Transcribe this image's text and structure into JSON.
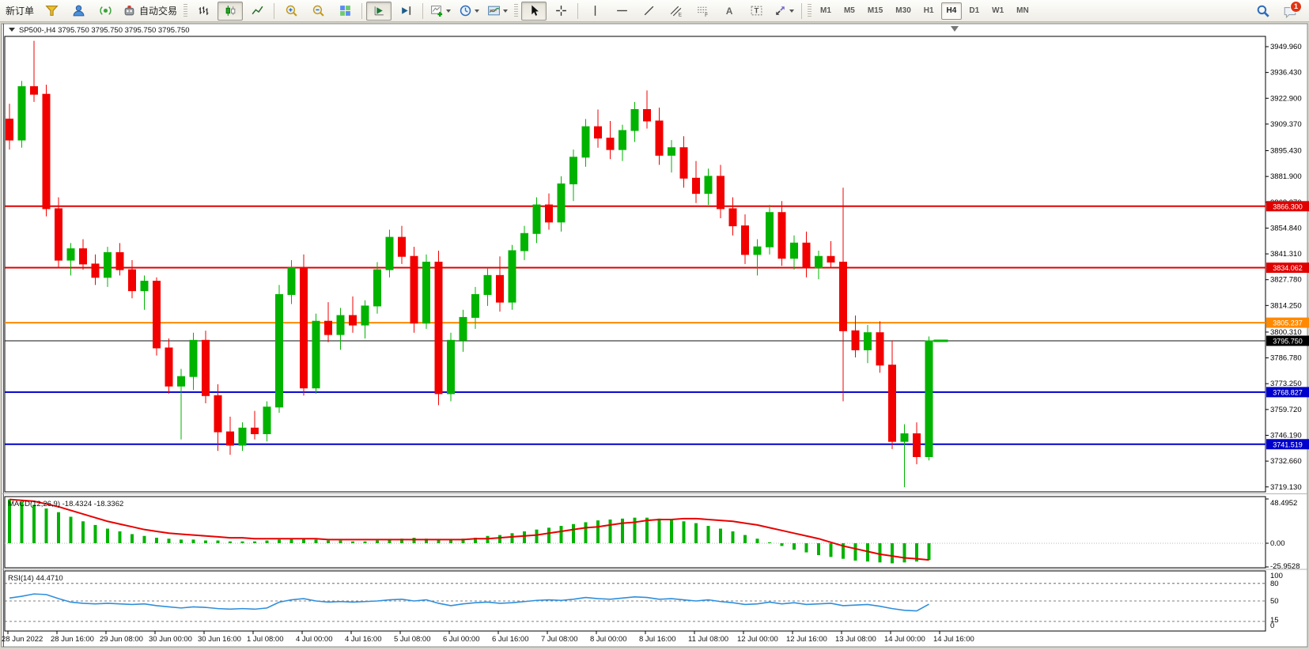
{
  "toolbar": {
    "new_order_label": "新订单",
    "auto_trading_label": "自动交易",
    "text_tool_label": "A",
    "label_tool_label": "T",
    "channel_tool_sub": "E",
    "fibo_tool_sub": "F",
    "timeframes": [
      "M1",
      "M5",
      "M15",
      "M30",
      "H1",
      "H4",
      "D1",
      "W1",
      "MN"
    ],
    "active_timeframe": "H4",
    "notification_count": "1",
    "icons": [
      "funnel-icon",
      "mql5-user-icon",
      "signals-icon",
      "autotrading-icon",
      "bars-chart-icon",
      "candles-chart-icon",
      "line-chart-icon",
      "zoom-in-icon",
      "zoom-out-icon",
      "tile-windows-icon",
      "auto-scroll-icon",
      "chart-shift-icon",
      "indicators-icon",
      "periods-icon",
      "templates-icon",
      "cursor-icon",
      "crosshair-icon",
      "vertical-line-icon",
      "horizontal-line-icon",
      "trendline-icon",
      "channel-icon",
      "fibonacci-icon",
      "text-icon",
      "label-icon",
      "arrows-icon",
      "search-icon",
      "chat-icon"
    ]
  },
  "chart_data": {
    "type": "candlestick",
    "title": "SP500-,H4  3795.750 3795.750 3795.750 3795.750",
    "symbol": "SP500-",
    "timeframe": "H4",
    "colors": {
      "up": "#00b300",
      "down": "#f20000",
      "bid_line": "#111111",
      "level_red": "#e00000",
      "level_orange": "#ff8a00",
      "level_blue": "#0000cc",
      "macd_signal": "#e80000",
      "macd_hist": "#00b300",
      "rsi_line": "#2f8fdd"
    },
    "price_axis": {
      "labels": [
        "3949.960",
        "3936.430",
        "3922.900",
        "3909.370",
        "3895.430",
        "3881.900",
        "3868.370",
        "3854.840",
        "3841.310",
        "3827.780",
        "3814.250",
        "3800.310",
        "3786.780",
        "3773.250",
        "3759.720",
        "3746.190",
        "3732.660",
        "3719.130"
      ],
      "values": [
        3949.96,
        3936.43,
        3922.9,
        3909.37,
        3895.43,
        3881.9,
        3868.37,
        3854.84,
        3841.31,
        3827.78,
        3814.25,
        3800.31,
        3786.78,
        3773.25,
        3759.72,
        3746.19,
        3732.66,
        3719.13
      ]
    },
    "hlines": [
      {
        "value": 3866.3,
        "label": "3866.300",
        "color": "#e00000",
        "width": 2
      },
      {
        "value": 3834.062,
        "label": "3834.062",
        "color": "#e00000",
        "width": 2
      },
      {
        "value": 3805.237,
        "label": "3805.237",
        "color": "#ff8a00",
        "width": 2
      },
      {
        "value": 3768.827,
        "label": "3768.827",
        "color": "#0000cc",
        "width": 2
      },
      {
        "value": 3741.519,
        "label": "3741.519",
        "color": "#0000cc",
        "width": 2
      }
    ],
    "bid": {
      "value": 3795.75,
      "label": "3795.750"
    },
    "ohlc": [
      [
        3912,
        3920,
        3896,
        3901
      ],
      [
        3901,
        3932,
        3897,
        3929
      ],
      [
        3929,
        3953,
        3921,
        3925
      ],
      [
        3925,
        3930,
        3861,
        3865
      ],
      [
        3865,
        3871,
        3834,
        3838
      ],
      [
        3838,
        3847,
        3830,
        3844
      ],
      [
        3844,
        3849,
        3833,
        3836
      ],
      [
        3836,
        3841,
        3825,
        3829
      ],
      [
        3829,
        3845,
        3824,
        3842
      ],
      [
        3842,
        3847,
        3830,
        3833
      ],
      [
        3833,
        3838,
        3818,
        3822
      ],
      [
        3822,
        3830,
        3812,
        3827
      ],
      [
        3827,
        3829,
        3788,
        3792
      ],
      [
        3792,
        3797,
        3768,
        3772
      ],
      [
        3772,
        3781,
        3744,
        3777
      ],
      [
        3777,
        3800,
        3770,
        3796
      ],
      [
        3796,
        3801,
        3763,
        3767
      ],
      [
        3767,
        3773,
        3738,
        3748
      ],
      [
        3748,
        3756,
        3736,
        3741
      ],
      [
        3741,
        3753,
        3738,
        3750
      ],
      [
        3750,
        3759,
        3744,
        3747
      ],
      [
        3747,
        3764,
        3743,
        3761
      ],
      [
        3761,
        3825,
        3758,
        3820
      ],
      [
        3820,
        3838,
        3815,
        3834
      ],
      [
        3834,
        3841,
        3767,
        3771
      ],
      [
        3771,
        3810,
        3768,
        3806
      ],
      [
        3806,
        3816,
        3795,
        3799
      ],
      [
        3799,
        3813,
        3791,
        3809
      ],
      [
        3809,
        3819,
        3800,
        3804
      ],
      [
        3804,
        3817,
        3797,
        3814
      ],
      [
        3814,
        3837,
        3810,
        3833
      ],
      [
        3833,
        3854,
        3829,
        3850
      ],
      [
        3850,
        3856,
        3836,
        3840
      ],
      [
        3840,
        3845,
        3800,
        3805
      ],
      [
        3805,
        3841,
        3802,
        3837
      ],
      [
        3837,
        3843,
        3762,
        3768
      ],
      [
        3768,
        3800,
        3764,
        3796
      ],
      [
        3796,
        3812,
        3790,
        3808
      ],
      [
        3808,
        3824,
        3802,
        3820
      ],
      [
        3820,
        3834,
        3814,
        3830
      ],
      [
        3830,
        3840,
        3811,
        3816
      ],
      [
        3816,
        3846,
        3812,
        3843
      ],
      [
        3843,
        3856,
        3838,
        3852
      ],
      [
        3852,
        3871,
        3847,
        3867
      ],
      [
        3867,
        3873,
        3854,
        3858
      ],
      [
        3858,
        3882,
        3853,
        3878
      ],
      [
        3878,
        3896,
        3869,
        3892
      ],
      [
        3892,
        3912,
        3887,
        3908
      ],
      [
        3908,
        3917,
        3897,
        3902
      ],
      [
        3902,
        3911,
        3891,
        3896
      ],
      [
        3896,
        3909,
        3890,
        3906
      ],
      [
        3906,
        3921,
        3900,
        3917
      ],
      [
        3917,
        3927,
        3907,
        3911
      ],
      [
        3911,
        3918,
        3888,
        3893
      ],
      [
        3893,
        3901,
        3884,
        3897
      ],
      [
        3897,
        3903,
        3876,
        3881
      ],
      [
        3881,
        3890,
        3868,
        3873
      ],
      [
        3873,
        3886,
        3867,
        3882
      ],
      [
        3882,
        3888,
        3860,
        3865
      ],
      [
        3865,
        3871,
        3851,
        3856
      ],
      [
        3856,
        3862,
        3836,
        3841
      ],
      [
        3841,
        3849,
        3830,
        3845
      ],
      [
        3845,
        3867,
        3841,
        3863
      ],
      [
        3863,
        3869,
        3835,
        3839
      ],
      [
        3839,
        3851,
        3833,
        3847
      ],
      [
        3847,
        3853,
        3829,
        3834
      ],
      [
        3834,
        3843,
        3828,
        3840
      ],
      [
        3840,
        3848,
        3834,
        3837
      ],
      [
        3837,
        3876,
        3764,
        3801
      ],
      [
        3801,
        3809,
        3787,
        3791
      ],
      [
        3791,
        3804,
        3784,
        3800
      ],
      [
        3800,
        3806,
        3779,
        3783
      ],
      [
        3783,
        3796,
        3739,
        3743
      ],
      [
        3743,
        3752,
        3719,
        3747
      ],
      [
        3747,
        3753,
        3731,
        3735
      ],
      [
        3735,
        3798,
        3733,
        3795.75
      ]
    ],
    "time_labels": [
      "28 Jun 2022",
      "28 Jun 16:00",
      "29 Jun 08:00",
      "30 Jun 00:00",
      "30 Jun 16:00",
      "1 Jul 08:00",
      "4 Jul 00:00",
      "4 Jul 16:00",
      "5 Jul 08:00",
      "6 Jul 00:00",
      "6 Jul 16:00",
      "7 Jul 08:00",
      "8 Jul 00:00",
      "8 Jul 16:00",
      "11 Jul 08:00",
      "12 Jul 00:00",
      "12 Jul 16:00",
      "13 Jul 08:00",
      "14 Jul 00:00",
      "14 Jul 16:00"
    ],
    "macd": {
      "label": "MACD(12,26,9) -18.4324 -18.3362",
      "macd_value": "-18.4324",
      "signal_value": "-18.3362",
      "axis_labels": [
        "48.4952",
        "0.00",
        "-25.9528"
      ],
      "axis_values": [
        48.4952,
        0,
        -25.9528
      ],
      "histogram": [
        48,
        45,
        42,
        38,
        34,
        29,
        24,
        20,
        16,
        13,
        10,
        8,
        6,
        5,
        4,
        4,
        3,
        3,
        2,
        2,
        2,
        3,
        4,
        5,
        5,
        4,
        3,
        3,
        2,
        2,
        3,
        4,
        5,
        6,
        5,
        4,
        4,
        5,
        6,
        8,
        9,
        11,
        13,
        15,
        17,
        19,
        21,
        23,
        25,
        26,
        27,
        28,
        28,
        27,
        26,
        24,
        22,
        19,
        16,
        13,
        9,
        5,
        1,
        -3,
        -7,
        -10,
        -13,
        -15,
        -17,
        -19,
        -20,
        -21,
        -22,
        -21,
        -20,
        -18.4
      ],
      "signal": [
        48,
        47,
        46,
        43,
        40,
        36,
        32,
        28,
        24,
        21,
        18,
        15,
        13,
        11,
        10,
        9,
        8,
        7,
        6,
        6,
        5,
        5,
        5,
        5,
        5,
        5,
        4,
        4,
        4,
        4,
        4,
        4,
        4,
        4,
        4,
        4,
        4,
        4,
        5,
        5,
        6,
        7,
        8,
        9,
        11,
        13,
        15,
        17,
        18,
        20,
        22,
        23,
        25,
        26,
        26,
        27,
        27,
        26,
        25,
        24,
        22,
        20,
        17,
        14,
        11,
        8,
        5,
        1,
        -3,
        -6,
        -9,
        -12,
        -14,
        -16,
        -17,
        -18.3
      ]
    },
    "rsi": {
      "label": "RSI(14) 44.4710",
      "value": "44.4710",
      "axis_labels": [
        "100",
        "80",
        "50",
        "15",
        "0"
      ],
      "levels": [
        80,
        50,
        15
      ],
      "values": [
        55,
        58,
        62,
        61,
        54,
        48,
        46,
        45,
        46,
        45,
        44,
        45,
        42,
        40,
        38,
        40,
        39,
        37,
        36,
        37,
        36,
        38,
        48,
        52,
        54,
        50,
        48,
        49,
        48,
        49,
        50,
        52,
        53,
        50,
        52,
        46,
        42,
        45,
        47,
        48,
        46,
        47,
        49,
        51,
        52,
        51,
        53,
        56,
        54,
        53,
        55,
        57,
        56,
        53,
        54,
        52,
        50,
        52,
        49,
        47,
        44,
        45,
        48,
        45,
        47,
        44,
        45,
        46,
        42,
        43,
        44,
        41,
        37,
        34,
        33,
        44.5
      ]
    }
  }
}
